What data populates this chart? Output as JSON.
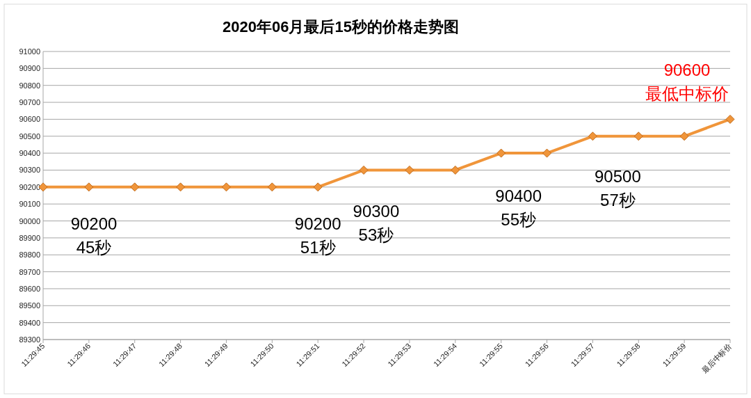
{
  "chart_data": {
    "type": "line",
    "title": "2020年06月最后15秒的价格走势图",
    "categories": [
      "11:29:45",
      "11:29:46",
      "11:29:47",
      "11:29:48",
      "11:29:49",
      "11:29:50",
      "11:29:51",
      "11:29:52",
      "11:29:53",
      "11:29:54",
      "11:29:55",
      "11:29:56",
      "11:29:57",
      "11:29:58",
      "11:29:59",
      "最后中标价"
    ],
    "series": [
      {
        "color": "#f0953a",
        "values": [
          90200,
          90200,
          90200,
          90200,
          90200,
          90200,
          90200,
          90300,
          90300,
          90300,
          90400,
          90400,
          90500,
          90500,
          90500,
          90600
        ]
      }
    ],
    "ylim": [
      89300,
      91000
    ],
    "yticks": [
      89300,
      89400,
      89500,
      89600,
      89700,
      89800,
      89900,
      90000,
      90100,
      90200,
      90300,
      90400,
      90500,
      90600,
      90700,
      90800,
      90900,
      91000
    ],
    "grid": "y",
    "marker": "diamond",
    "line_style": "solid",
    "annotations": [
      {
        "text": "90200\n45秒",
        "x": "11:29:45",
        "y": 90200
      },
      {
        "text": "90200\n51秒",
        "x": "11:29:51",
        "y": 90200
      },
      {
        "text": "90300\n53秒",
        "x": "11:29:53",
        "y": 90300
      },
      {
        "text": "90400\n55秒",
        "x": "11:29:55",
        "y": 90400
      },
      {
        "text": "90500\n57秒",
        "x": "11:29:57",
        "y": 90500
      },
      {
        "text": "90600\n最低中标价",
        "x": "最后中标价",
        "y": 90600
      }
    ]
  }
}
